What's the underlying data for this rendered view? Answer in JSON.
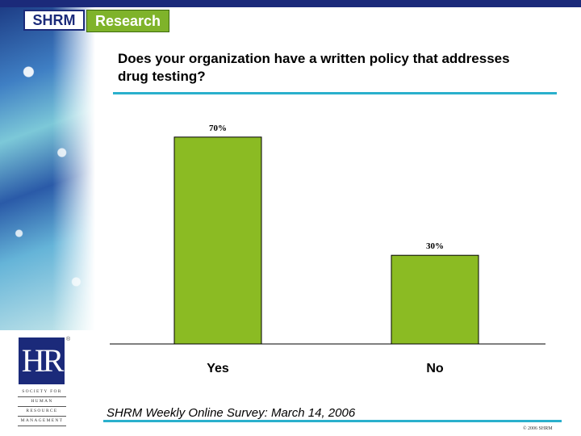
{
  "header": {
    "brand": "SHRM",
    "section": "Research"
  },
  "chart_data": {
    "type": "bar",
    "title": "Does your organization have a written policy that addresses drug testing?",
    "categories": [
      "Yes",
      "No"
    ],
    "values": [
      70,
      30
    ],
    "data_labels": [
      "70%",
      "30%"
    ],
    "ylim": [
      0,
      100
    ],
    "xlabel": "",
    "ylabel": "",
    "grid": false,
    "bar_color": "#8bbb23"
  },
  "footer": {
    "source": "SHRM Weekly Online Survey: March 14, 2006",
    "copyright": "© 2006 SHRM"
  },
  "org_logo": {
    "mark": "HR",
    "words": [
      "SOCIETY FOR",
      "HUMAN",
      "RESOURCE",
      "MANAGEMENT"
    ]
  },
  "colors": {
    "accent_rule": "#2ab0cc",
    "brand_navy": "#1b2a7a",
    "research_green": "#7fb32a"
  }
}
